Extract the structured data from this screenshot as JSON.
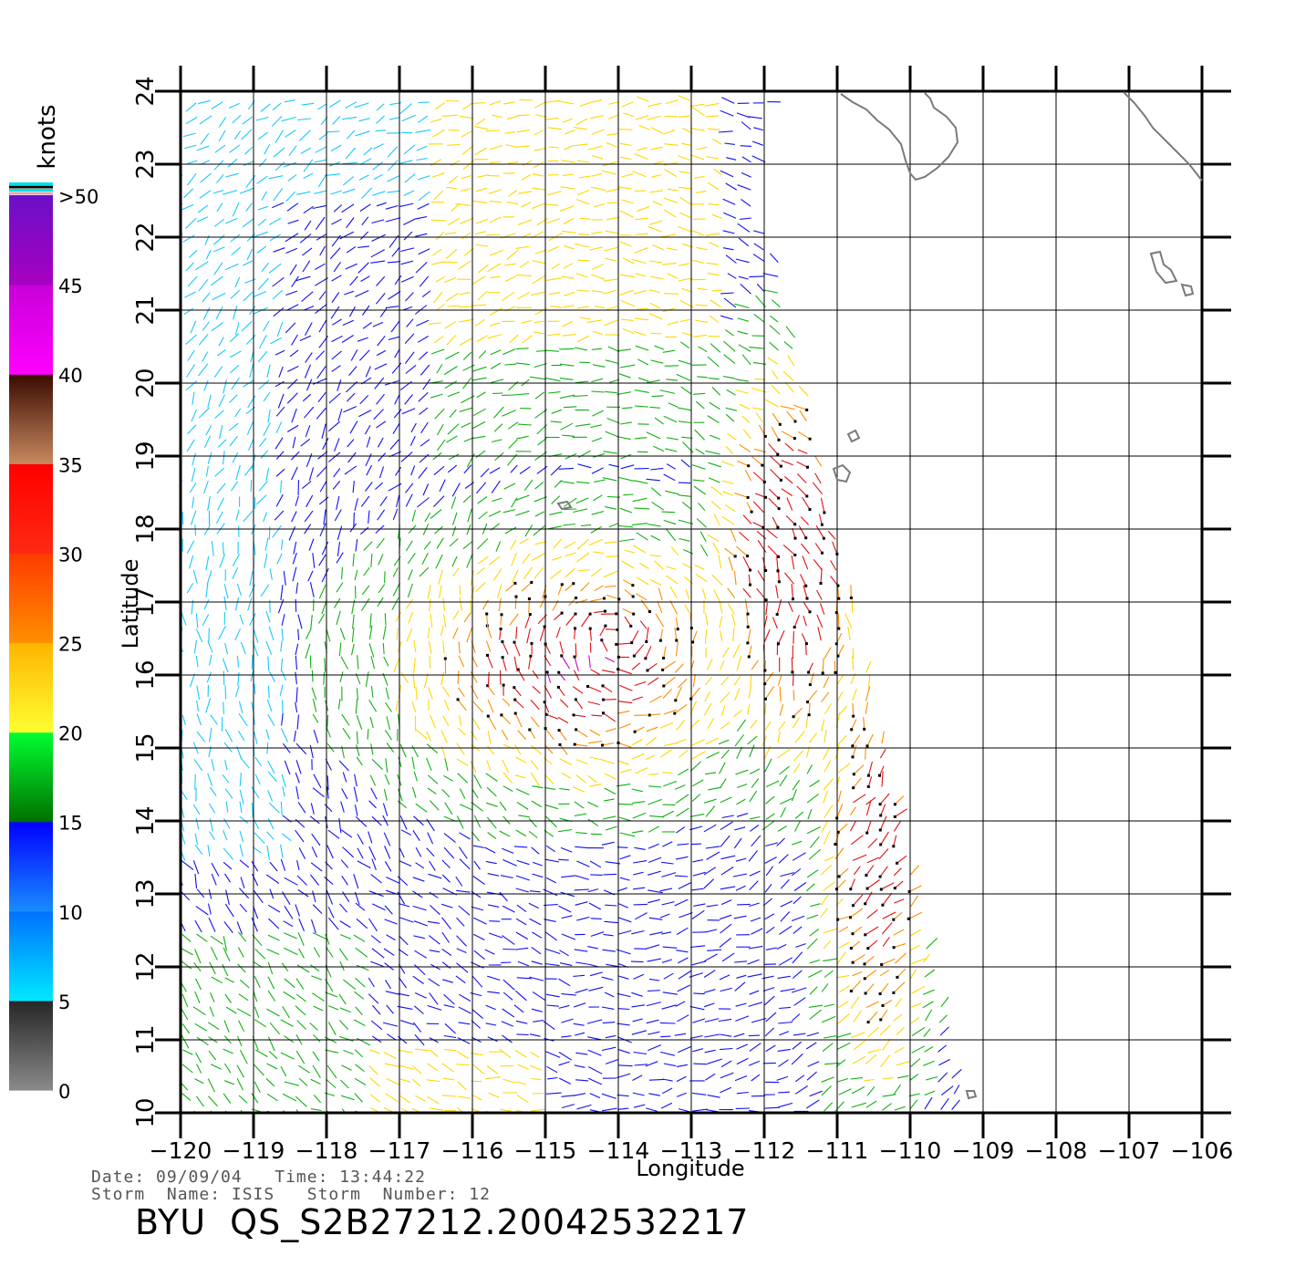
{
  "map": {
    "lon_range": [
      -120,
      -105
    ],
    "lat_range": [
      10,
      24
    ],
    "lon_ticks": [
      -120,
      -119,
      -118,
      -117,
      -116,
      -115,
      -114,
      -113,
      -112,
      -111,
      -110,
      -109,
      -108,
      -107,
      -106
    ],
    "lat_ticks": [
      10,
      11,
      12,
      13,
      14,
      15,
      16,
      17,
      18,
      19,
      20,
      21,
      22,
      23,
      24
    ],
    "xlabel": "Longitude",
    "ylabel": "Latitude",
    "grid": true,
    "coastline_color": "#7a7a7a"
  },
  "colorbar": {
    "unit_label": "knots",
    "labels": [
      "0",
      "5",
      "10",
      "15",
      "20",
      "25",
      "30",
      "35",
      "40",
      "45",
      ">50"
    ],
    "bands": [
      {
        "from": 0,
        "to": 5,
        "colors": [
          "#8a8a8a",
          "#262626"
        ]
      },
      {
        "from": 5,
        "to": 10,
        "colors": [
          "#00e8ff",
          "#0070ff"
        ]
      },
      {
        "from": 10,
        "to": 15,
        "colors": [
          "#1a8cff",
          "#0000ff"
        ]
      },
      {
        "from": 15,
        "to": 20,
        "colors": [
          "#007000",
          "#00ff30"
        ]
      },
      {
        "from": 20,
        "to": 25,
        "colors": [
          "#ffff30",
          "#ffb400"
        ]
      },
      {
        "from": 25,
        "to": 30,
        "colors": [
          "#ff9000",
          "#ff3a00"
        ]
      },
      {
        "from": 30,
        "to": 35,
        "colors": [
          "#ff2a10",
          "#ff0000"
        ]
      },
      {
        "from": 35,
        "to": 40,
        "colors": [
          "#c88a60",
          "#3a0a00"
        ]
      },
      {
        "from": 40,
        "to": 45,
        "colors": [
          "#ff00ff",
          "#c800d8"
        ]
      },
      {
        "from": 45,
        "to": 50,
        "colors": [
          "#a800c0",
          "#6a10c8"
        ]
      }
    ],
    "top_stripes": [
      "#00e0e0",
      "#000000",
      "#00e0e0",
      "#d8a8b8"
    ]
  },
  "wind_colors": {
    "cyan": "#18c8ff",
    "blue": "#1010f0",
    "green": "#10b010",
    "yellow": "#ffd700",
    "orange": "#ff8c00",
    "red": "#e01010",
    "magenta": "#d000d0"
  },
  "footer": {
    "line1": "Date: 09/09/04   Time: 13:44:22",
    "line2": "Storm  Name: ISIS   Storm  Number: 12",
    "title": "BYU  QS_S2B27212.20042532217"
  }
}
